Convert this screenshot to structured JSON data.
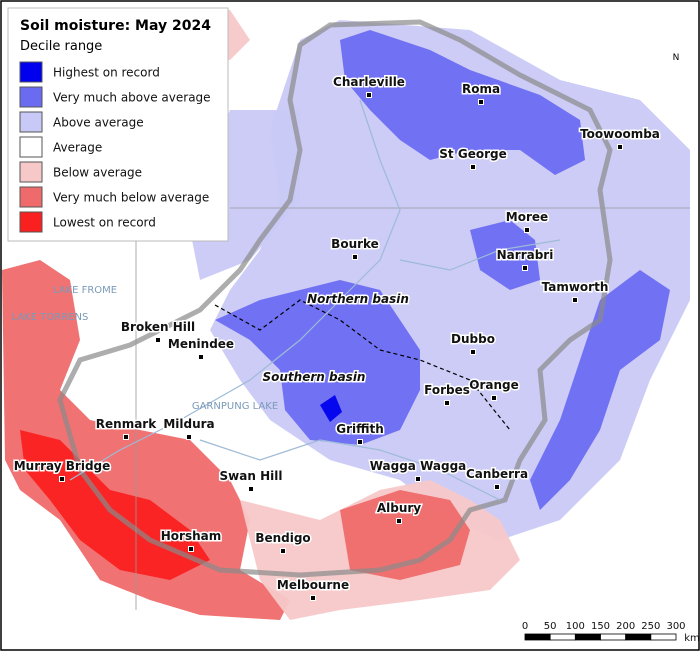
{
  "legend": {
    "title": "Soil moisture: May 2024",
    "subtitle": "Decile range",
    "items": [
      {
        "label": "Highest on record",
        "color": "#0000ee"
      },
      {
        "label": "Very much above average",
        "color": "#6b6bf2"
      },
      {
        "label": "Above average",
        "color": "#c9c9f7"
      },
      {
        "label": "Average",
        "color": "#ffffff"
      },
      {
        "label": "Below average",
        "color": "#f7c8c8"
      },
      {
        "label": "Very much below average",
        "color": "#ef6a6a"
      },
      {
        "label": "Lowest on record",
        "color": "#fa2020"
      }
    ]
  },
  "places": [
    "Charleville",
    "Roma",
    "Toowoomba",
    "St George",
    "Moree",
    "Narrabri",
    "Bourke",
    "Tamworth",
    "Broken Hill",
    "Menindee",
    "Dubbo",
    "Forbes",
    "Orange",
    "Renmark",
    "Mildura",
    "Griffith",
    "Wagga Wagga",
    "Swan Hill",
    "Canberra",
    "Murray Bridge",
    "Albury",
    "Horsham",
    "Bendigo",
    "Melbourne"
  ],
  "regions": [
    "Northern basin",
    "Southern basin"
  ],
  "lakes": [
    "LAKE FROME",
    "LAKE TORRENS",
    "GARNPUNG LAKE"
  ],
  "scale_bar": {
    "ticks": [
      0,
      50,
      100,
      150,
      200,
      250,
      300
    ],
    "unit": "km"
  },
  "north": "N"
}
